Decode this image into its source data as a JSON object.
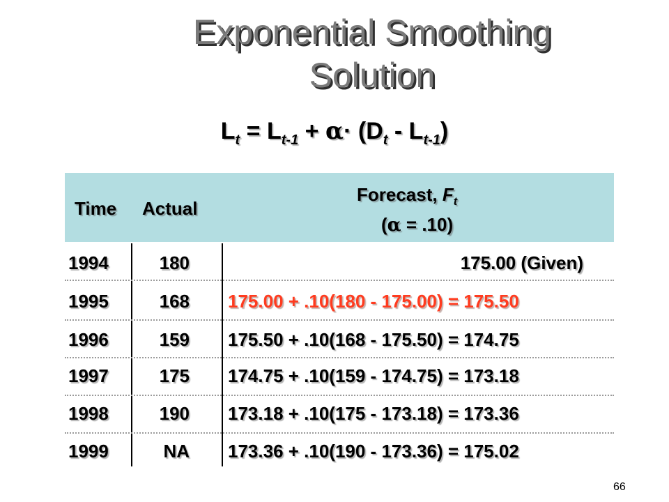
{
  "title": {
    "line1": "Exponential Smoothing",
    "line2": "Solution"
  },
  "formula": {
    "lhs_base": "L",
    "lhs_sub": "t",
    "eq": " = ",
    "term1_base": "L",
    "term1_sub": "t-1",
    "plus": " + ",
    "alpha": "α",
    "dot": "·",
    "open": " (D",
    "d_sub": "t",
    "minus": " - L",
    "l_sub": "t-1",
    "close": ")"
  },
  "table": {
    "headers": {
      "time": "Time",
      "actual": "Actual",
      "forecast_label": "Forecast, ",
      "forecast_symbol": "F",
      "forecast_sub": "t",
      "alpha_open": "(",
      "alpha_symbol": "α",
      "alpha_value": " = .10)"
    },
    "rows": [
      {
        "year": "1994",
        "actual": "180",
        "forecast": "175.00 (Given)"
      },
      {
        "year": "1995",
        "actual": "168",
        "forecast": "175.00 + .10(180 - 175.00) = 175.50"
      },
      {
        "year": "1996",
        "actual": "159",
        "forecast": "175.50 + .10(168 - 175.50) = 174.75"
      },
      {
        "year": "1997",
        "actual": "175",
        "forecast": "174.75 + .10(159 - 174.75) = 173.18"
      },
      {
        "year": "1998",
        "actual": "190",
        "forecast": "173.18 + .10(175 - 173.18) = 173.36"
      },
      {
        "year": "1999",
        "actual": "NA",
        "forecast": "173.36 + .10(190 - 173.36) = 175.02"
      }
    ],
    "highlight_color": "#ff3b1f",
    "header_color": "#b3dde1"
  },
  "slide_number": "66"
}
